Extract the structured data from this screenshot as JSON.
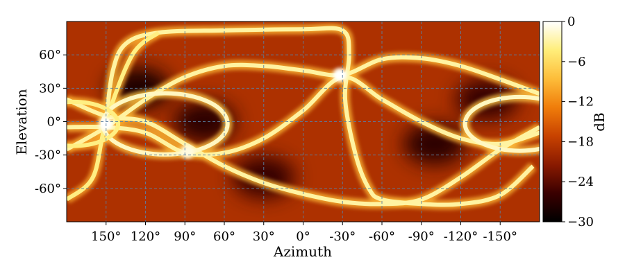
{
  "chart_data": {
    "type": "heatmap",
    "title": "",
    "xlabel": "Azimuth",
    "ylabel": "Elevation",
    "colorbar_label": "dB",
    "xlim": [
      180,
      -180
    ],
    "ylim": [
      -90,
      90
    ],
    "clim": [
      -30,
      0
    ],
    "grid": true,
    "x_ticks": [
      {
        "value": 150,
        "label": "150°"
      },
      {
        "value": 120,
        "label": "120°"
      },
      {
        "value": 90,
        "label": "90°"
      },
      {
        "value": 60,
        "label": "60°"
      },
      {
        "value": 30,
        "label": "30°"
      },
      {
        "value": 0,
        "label": "0°"
      },
      {
        "value": -30,
        "label": "-30°"
      },
      {
        "value": -60,
        "label": "-60°"
      },
      {
        "value": -90,
        "label": "-90°"
      },
      {
        "value": -120,
        "label": "-120°"
      },
      {
        "value": -150,
        "label": "-150°"
      }
    ],
    "y_ticks": [
      {
        "value": 60,
        "label": "60°"
      },
      {
        "value": 30,
        "label": "30°"
      },
      {
        "value": 0,
        "label": "0°"
      },
      {
        "value": -30,
        "label": "-30°"
      },
      {
        "value": -60,
        "label": "-60°"
      }
    ],
    "colorbar_ticks": [
      {
        "value": 0,
        "label": "0"
      },
      {
        "value": -6,
        "label": "−6"
      },
      {
        "value": -12,
        "label": "−12"
      },
      {
        "value": -18,
        "label": "−18"
      },
      {
        "value": -24,
        "label": "−24"
      },
      {
        "value": -30,
        "label": "−30"
      }
    ],
    "colormap": [
      "#000000",
      "#3a0000",
      "#8a1a00",
      "#c84200",
      "#f07d0a",
      "#fdbd3a",
      "#ffee7a",
      "#ffffff"
    ],
    "background_level_db": -19,
    "curves": [
      {
        "kind": "loop",
        "points": [
          [
            150,
            0
          ],
          [
            145,
            45
          ],
          [
            135,
            70
          ],
          [
            110,
            80
          ],
          [
            60,
            82
          ],
          [
            0,
            83
          ],
          [
            -30,
            82
          ],
          [
            -35,
            60
          ],
          [
            -32,
            20
          ],
          [
            -40,
            -30
          ],
          [
            -50,
            -60
          ],
          [
            -60,
            -70
          ],
          [
            -90,
            -74
          ],
          [
            -120,
            -74
          ],
          [
            -150,
            -66
          ],
          [
            -175,
            -40
          ]
        ],
        "level_db": -3
      },
      {
        "kind": "wave",
        "points": [
          [
            180,
            -25
          ],
          [
            150,
            -5
          ],
          [
            120,
            20
          ],
          [
            90,
            40
          ],
          [
            60,
            50
          ],
          [
            30,
            50
          ],
          [
            0,
            46
          ],
          [
            -30,
            42
          ],
          [
            -60,
            56
          ],
          [
            -90,
            57
          ],
          [
            -120,
            50
          ],
          [
            -150,
            38
          ],
          [
            -180,
            25
          ]
        ],
        "level_db": -3
      },
      {
        "kind": "wave",
        "points": [
          [
            180,
            20
          ],
          [
            150,
            5
          ],
          [
            120,
            0
          ],
          [
            90,
            -20
          ],
          [
            60,
            -40
          ],
          [
            30,
            -55
          ],
          [
            0,
            -65
          ],
          [
            -30,
            -72
          ],
          [
            -60,
            -74
          ],
          [
            -90,
            -70
          ],
          [
            -120,
            -50
          ],
          [
            -150,
            -25
          ],
          [
            -180,
            -5
          ]
        ],
        "level_db": -3
      },
      {
        "kind": "wave",
        "points": [
          [
            180,
            -5
          ],
          [
            150,
            -5
          ],
          [
            120,
            -10
          ],
          [
            90,
            -28
          ],
          [
            60,
            -28
          ],
          [
            30,
            -15
          ],
          [
            0,
            10
          ],
          [
            -30,
            40
          ],
          [
            -60,
            20
          ],
          [
            -90,
            0
          ],
          [
            -120,
            -15
          ],
          [
            -150,
            -20
          ],
          [
            -180,
            -10
          ]
        ],
        "level_db": -3
      },
      {
        "kind": "wave",
        "points": [
          [
            180,
            -70
          ],
          [
            160,
            -50
          ],
          [
            150,
            0
          ],
          [
            130,
            60
          ],
          [
            110,
            80
          ]
        ],
        "level_db": -4
      }
    ],
    "circles": [
      {
        "center": [
          105,
          -2
        ],
        "radius_deg": 25,
        "level_db": -2
      },
      {
        "center": [
          -165,
          -2
        ],
        "radius_deg": 22,
        "level_db": -2
      },
      {
        "center": [
          175,
          -2
        ],
        "radius_deg": 18,
        "level_db": -4
      }
    ],
    "hot_spots": [
      {
        "center": [
          150,
          -2
        ],
        "level_db": 0
      },
      {
        "center": [
          -28,
          42
        ],
        "level_db": 0
      },
      {
        "center": [
          88,
          -27
        ],
        "level_db": -1
      }
    ],
    "dark_regions": [
      {
        "center": [
          125,
          30
        ],
        "level_db": -28
      },
      {
        "center": [
          75,
          0
        ],
        "level_db": -27
      },
      {
        "center": [
          -100,
          -20
        ],
        "level_db": -27
      },
      {
        "center": [
          -140,
          20
        ],
        "level_db": -26
      },
      {
        "center": [
          30,
          -50
        ],
        "level_db": -26
      }
    ]
  }
}
